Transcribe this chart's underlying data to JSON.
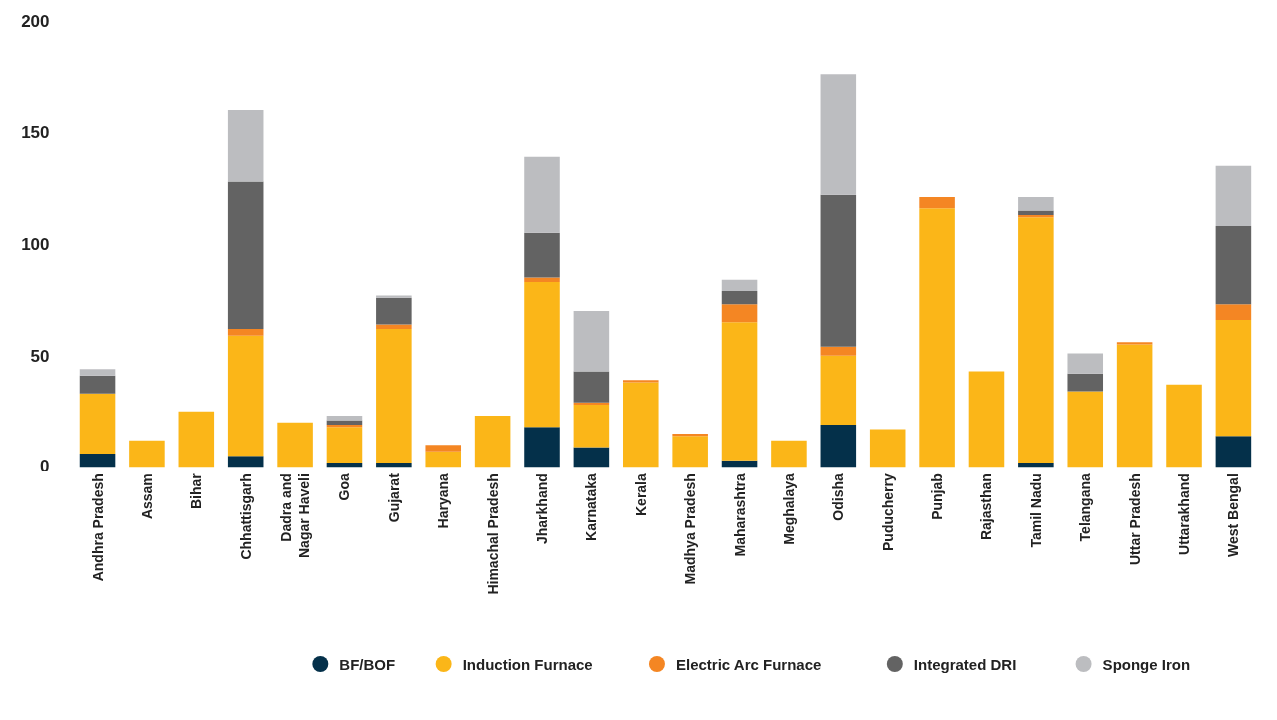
{
  "chart_data": {
    "type": "bar",
    "stacked": true,
    "categories": [
      "Andhra Pradesh",
      "Assam",
      "Bihar",
      "Chhattisgarh",
      "Dadra and\nNagar Haveli",
      "Goa",
      "Gujarat",
      "Haryana",
      "Himachal Pradesh",
      "Jharkhand",
      "Karnataka",
      "Kerala",
      "Madhya Pradesh",
      "Maharashtra",
      "Meghalaya",
      "Odisha",
      "Puducherry",
      "Punjab",
      "Rajasthan",
      "Tamil Nadu",
      "Telangana",
      "Uttar Pradesh",
      "Uttarakhand",
      "West Bengal"
    ],
    "series": [
      {
        "name": "BF/BOF",
        "color": "#04304a",
        "values": [
          6,
          0,
          0,
          5,
          0,
          2,
          2,
          0,
          0,
          18,
          9,
          0,
          0,
          3,
          0,
          19,
          0,
          0,
          0,
          2,
          0,
          0,
          0,
          14
        ]
      },
      {
        "name": "Induction Furnace",
        "color": "#fbb618",
        "values": [
          27,
          12,
          25,
          54,
          20,
          16,
          60,
          7,
          23,
          65,
          19,
          38,
          14,
          62,
          12,
          31,
          17,
          116,
          43,
          110,
          34,
          55,
          37,
          52
        ]
      },
      {
        "name": "Electric Arc Furnace",
        "color": "#f48623",
        "values": [
          0,
          0,
          0,
          3,
          0,
          1,
          2,
          3,
          0,
          2,
          1,
          1,
          1,
          8,
          0,
          4,
          0,
          5,
          0,
          1,
          0,
          1,
          0,
          7
        ]
      },
      {
        "name": "Integrated DRI",
        "color": "#636363",
        "values": [
          8,
          0,
          0,
          66,
          0,
          2,
          12,
          0,
          0,
          20,
          14,
          0,
          0,
          6,
          0,
          68,
          0,
          0,
          0,
          2,
          8,
          0,
          0,
          35
        ]
      },
      {
        "name": "Sponge Iron",
        "color": "#bcbdc0",
        "values": [
          3,
          0,
          0,
          32,
          0,
          2,
          1,
          0,
          0,
          34,
          27,
          0,
          0,
          5,
          0,
          54,
          0,
          0,
          0,
          6,
          9,
          0,
          0,
          27
        ]
      }
    ],
    "ylim": [
      0,
      200
    ],
    "yticks": [
      0,
      50,
      100,
      150,
      200
    ],
    "grid": false,
    "legend": "bottom"
  }
}
